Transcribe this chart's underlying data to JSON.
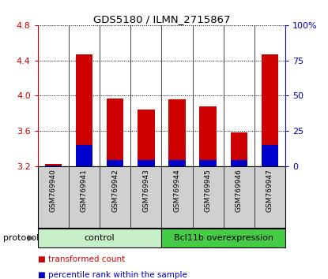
{
  "title": "GDS5180 / ILMN_2715867",
  "samples": [
    "GSM769940",
    "GSM769941",
    "GSM769942",
    "GSM769943",
    "GSM769944",
    "GSM769945",
    "GSM769946",
    "GSM769947"
  ],
  "transformed_count": [
    3.22,
    4.47,
    3.97,
    3.84,
    3.96,
    3.88,
    3.58,
    4.47
  ],
  "percentile_rank": [
    0.5,
    15.0,
    4.0,
    4.5,
    4.0,
    4.0,
    4.5,
    15.0
  ],
  "ylim_left": [
    3.2,
    4.8
  ],
  "ylim_right": [
    0,
    100
  ],
  "yticks_left": [
    3.2,
    3.6,
    4.0,
    4.4,
    4.8
  ],
  "yticks_right": [
    0,
    25,
    50,
    75,
    100
  ],
  "ytick_labels_right": [
    "0",
    "25",
    "50",
    "75",
    "100%"
  ],
  "bar_color_red": "#cc0000",
  "bar_color_blue": "#0000cc",
  "bar_width": 0.55,
  "tick_color_left": "#cc0000",
  "tick_color_right": "#0000bb",
  "background_color": "#ffffff",
  "control_color": "#c8f0c8",
  "bcl_color": "#44cc44",
  "sample_box_color": "#d0d0d0"
}
